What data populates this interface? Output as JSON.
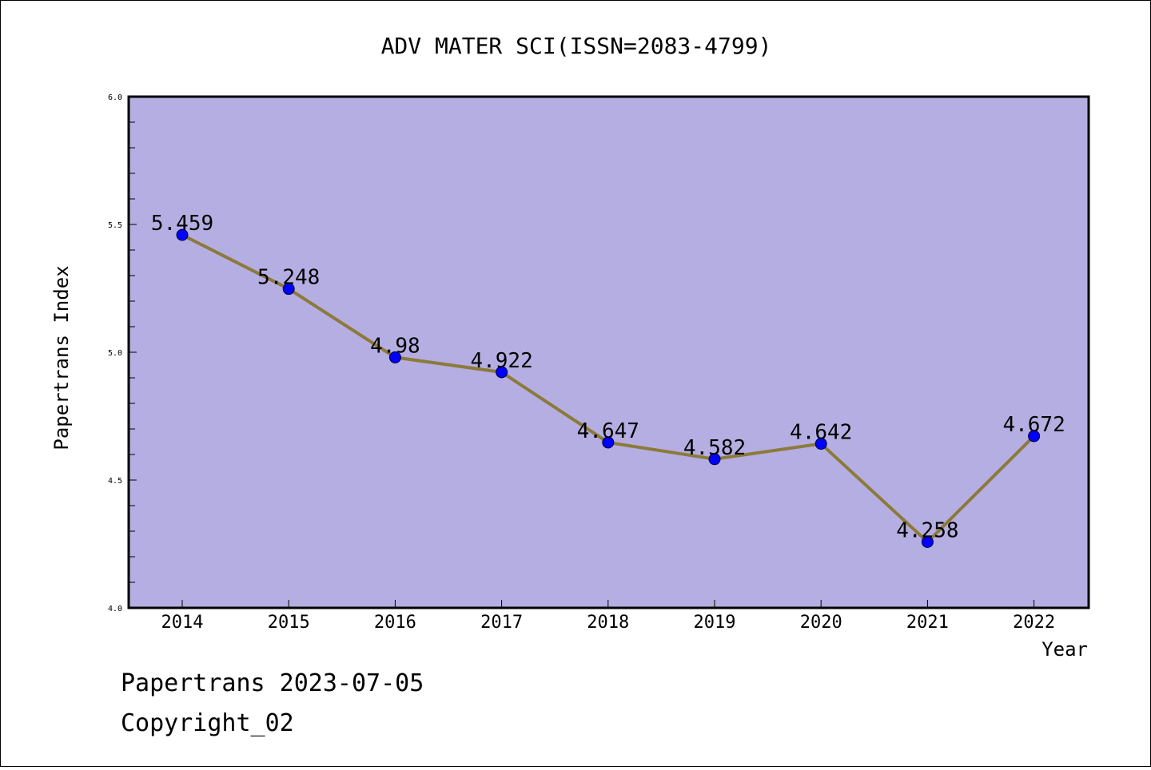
{
  "chart_data": {
    "type": "line",
    "title": "ADV MATER SCI(ISSN=2083-4799)",
    "xlabel": "Year",
    "ylabel": "Papertrans Index",
    "categories": [
      "2014",
      "2015",
      "2016",
      "2017",
      "2018",
      "2019",
      "2020",
      "2021",
      "2022"
    ],
    "values": [
      5.459,
      5.248,
      4.98,
      4.922,
      4.647,
      4.582,
      4.642,
      4.258,
      4.672
    ],
    "data_labels": [
      "5.459",
      "5.248",
      "4.98",
      "4.922",
      "4.647",
      "4.582",
      "4.642",
      "4.258",
      "4.672"
    ],
    "ylim": [
      4.0,
      6.0
    ],
    "yticks": [
      "4.0",
      "4.5",
      "5.0",
      "5.5",
      "6.0"
    ],
    "grid": false,
    "legend": "none",
    "colors": {
      "plot_background": "#b5aee2",
      "line": "#8c7a3a",
      "marker": "#0000ff"
    }
  },
  "footer": {
    "line1": "Papertrans 2023-07-05",
    "line2": "Copyright_02"
  }
}
